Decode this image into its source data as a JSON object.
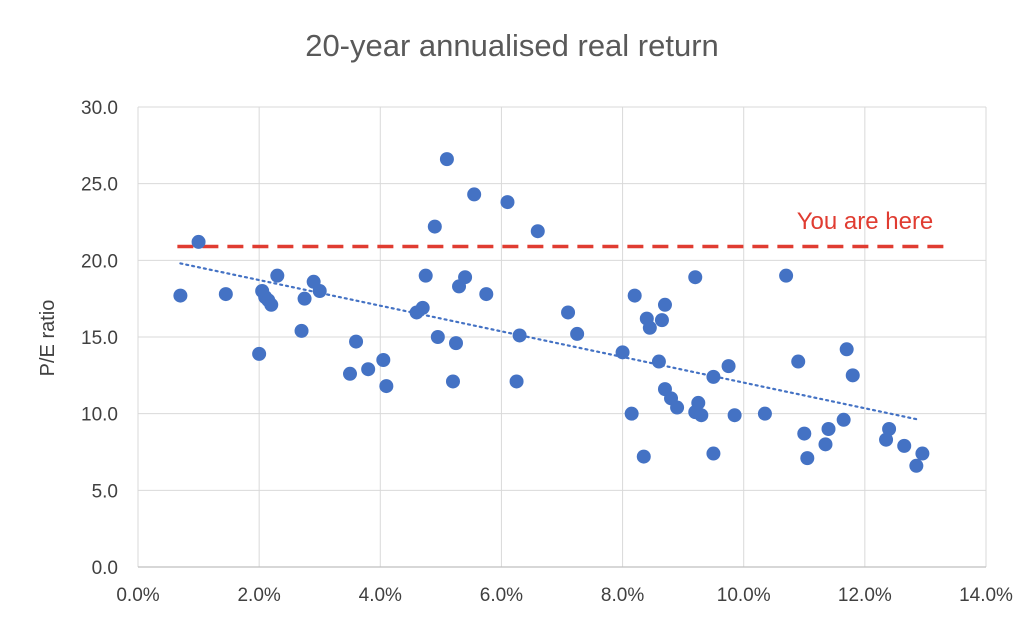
{
  "chart_data": {
    "type": "scatter",
    "title": "20-year annualised real return",
    "xlabel": "",
    "ylabel": "P/E ratio",
    "xlim": [
      0,
      14
    ],
    "ylim": [
      0,
      30
    ],
    "x_ticks": [
      "0.0%",
      "2.0%",
      "4.0%",
      "6.0%",
      "8.0%",
      "10.0%",
      "12.0%",
      "14.0%"
    ],
    "y_ticks": [
      "0.0",
      "5.0",
      "10.0",
      "15.0",
      "20.0",
      "25.0",
      "30.0"
    ],
    "grid": true,
    "point_color": "#4472c4",
    "series": [
      {
        "points": [
          {
            "x": 0.7,
            "y": 17.7
          },
          {
            "x": 1.0,
            "y": 21.2
          },
          {
            "x": 1.45,
            "y": 17.8
          },
          {
            "x": 2.0,
            "y": 13.9
          },
          {
            "x": 2.05,
            "y": 18.0
          },
          {
            "x": 2.1,
            "y": 17.6
          },
          {
            "x": 2.15,
            "y": 17.4
          },
          {
            "x": 2.2,
            "y": 17.1
          },
          {
            "x": 2.3,
            "y": 19.0
          },
          {
            "x": 2.7,
            "y": 15.4
          },
          {
            "x": 2.75,
            "y": 17.5
          },
          {
            "x": 2.9,
            "y": 18.6
          },
          {
            "x": 3.0,
            "y": 18.0
          },
          {
            "x": 3.5,
            "y": 12.6
          },
          {
            "x": 3.6,
            "y": 14.7
          },
          {
            "x": 3.8,
            "y": 12.9
          },
          {
            "x": 4.05,
            "y": 13.5
          },
          {
            "x": 4.1,
            "y": 11.8
          },
          {
            "x": 4.6,
            "y": 16.6
          },
          {
            "x": 4.7,
            "y": 16.9
          },
          {
            "x": 4.75,
            "y": 19.0
          },
          {
            "x": 4.9,
            "y": 22.2
          },
          {
            "x": 4.95,
            "y": 15.0
          },
          {
            "x": 5.1,
            "y": 26.6
          },
          {
            "x": 5.2,
            "y": 12.1
          },
          {
            "x": 5.25,
            "y": 14.6
          },
          {
            "x": 5.3,
            "y": 18.3
          },
          {
            "x": 5.4,
            "y": 18.9
          },
          {
            "x": 5.55,
            "y": 24.3
          },
          {
            "x": 5.75,
            "y": 17.8
          },
          {
            "x": 6.1,
            "y": 23.8
          },
          {
            "x": 6.25,
            "y": 12.1
          },
          {
            "x": 6.3,
            "y": 15.1
          },
          {
            "x": 6.6,
            "y": 21.9
          },
          {
            "x": 7.1,
            "y": 16.6
          },
          {
            "x": 7.25,
            "y": 15.2
          },
          {
            "x": 8.0,
            "y": 14.0
          },
          {
            "x": 8.15,
            "y": 10.0
          },
          {
            "x": 8.2,
            "y": 17.7
          },
          {
            "x": 8.35,
            "y": 7.2
          },
          {
            "x": 8.4,
            "y": 16.2
          },
          {
            "x": 8.45,
            "y": 15.6
          },
          {
            "x": 8.6,
            "y": 13.4
          },
          {
            "x": 8.65,
            "y": 16.1
          },
          {
            "x": 8.7,
            "y": 17.1
          },
          {
            "x": 8.7,
            "y": 11.6
          },
          {
            "x": 8.8,
            "y": 11.0
          },
          {
            "x": 8.9,
            "y": 10.4
          },
          {
            "x": 9.2,
            "y": 18.9
          },
          {
            "x": 9.2,
            "y": 10.1
          },
          {
            "x": 9.25,
            "y": 10.7
          },
          {
            "x": 9.3,
            "y": 9.9
          },
          {
            "x": 9.5,
            "y": 7.4
          },
          {
            "x": 9.5,
            "y": 12.4
          },
          {
            "x": 9.75,
            "y": 13.1
          },
          {
            "x": 9.85,
            "y": 9.9
          },
          {
            "x": 10.35,
            "y": 10.0
          },
          {
            "x": 10.7,
            "y": 19.0
          },
          {
            "x": 10.9,
            "y": 13.4
          },
          {
            "x": 11.0,
            "y": 8.7
          },
          {
            "x": 11.05,
            "y": 7.1
          },
          {
            "x": 11.35,
            "y": 8.0
          },
          {
            "x": 11.4,
            "y": 9.0
          },
          {
            "x": 11.65,
            "y": 9.6
          },
          {
            "x": 11.7,
            "y": 14.2
          },
          {
            "x": 11.8,
            "y": 12.5
          },
          {
            "x": 12.35,
            "y": 8.3
          },
          {
            "x": 12.4,
            "y": 9.0
          },
          {
            "x": 12.65,
            "y": 7.9
          },
          {
            "x": 12.85,
            "y": 6.6
          },
          {
            "x": 12.95,
            "y": 7.4
          }
        ]
      }
    ],
    "trendline": {
      "style": "dotted",
      "color": "#4472c4",
      "from": {
        "x": 0.7,
        "y": 19.8
      },
      "to": {
        "x": 12.9,
        "y": 9.6
      }
    },
    "reference_line": {
      "style": "dashed",
      "color": "#e03c31",
      "y": 20.9,
      "x_start": 0.65,
      "x_end": 13.4,
      "label": "You are here"
    }
  }
}
